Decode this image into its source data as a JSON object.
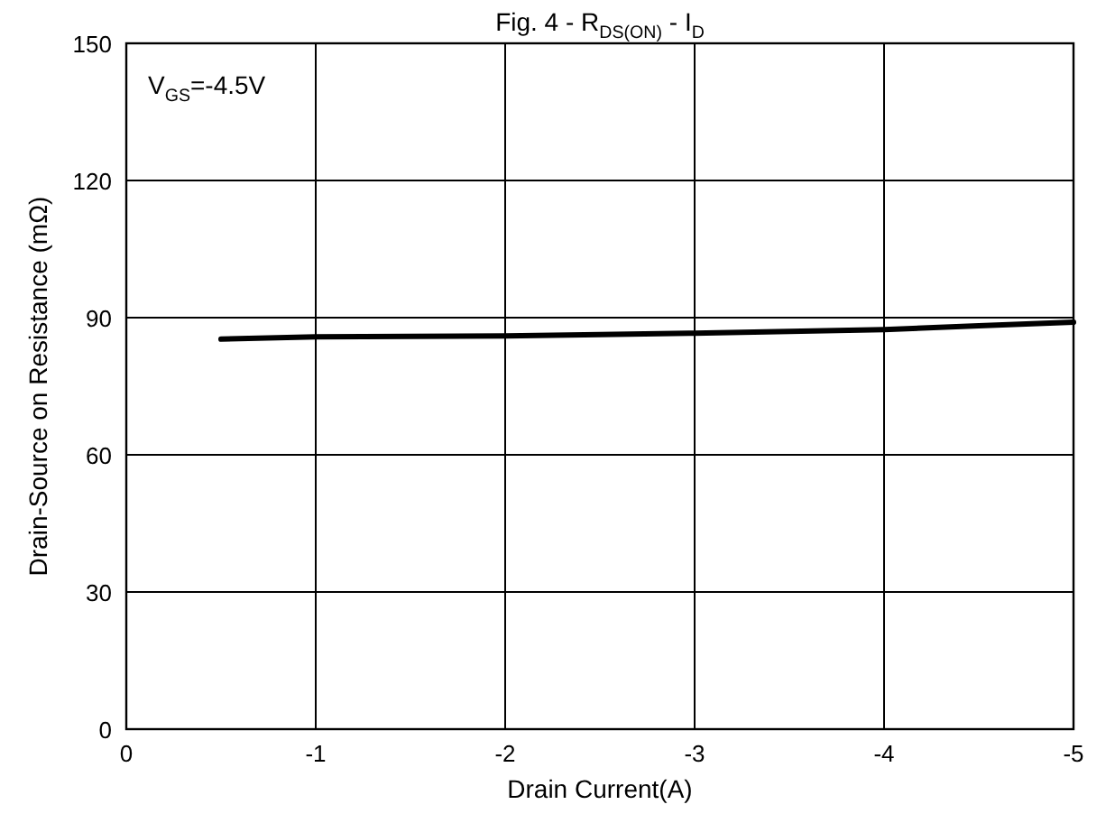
{
  "chart_data": {
    "type": "line",
    "title": "Fig. 4 - R$_{DS(ON)}$ - I$_{D}$",
    "xlabel": "Drain Current(A)",
    "ylabel": "Drain-Source on Resistance (mΩ)",
    "annotations": [
      "V$_{GS}$=-4.5V"
    ],
    "x": [
      -0.5,
      -1,
      -1.5,
      -2,
      -2.5,
      -3,
      -3.5,
      -4,
      -4.5,
      -5
    ],
    "series": [
      {
        "color": "#000000",
        "values": [
          85.3,
          85.8,
          85.9,
          86,
          86.3,
          86.6,
          87,
          87.4,
          88.2,
          89
        ]
      }
    ],
    "xlim": [
      0,
      -5
    ],
    "xticks": [
      0,
      -1,
      -2,
      -3,
      -4,
      -5
    ],
    "ylim": [
      0,
      150
    ],
    "yticks": [
      0,
      30,
      60,
      90,
      120,
      150
    ],
    "grid": true,
    "marker": "none",
    "line_style": "solid"
  }
}
